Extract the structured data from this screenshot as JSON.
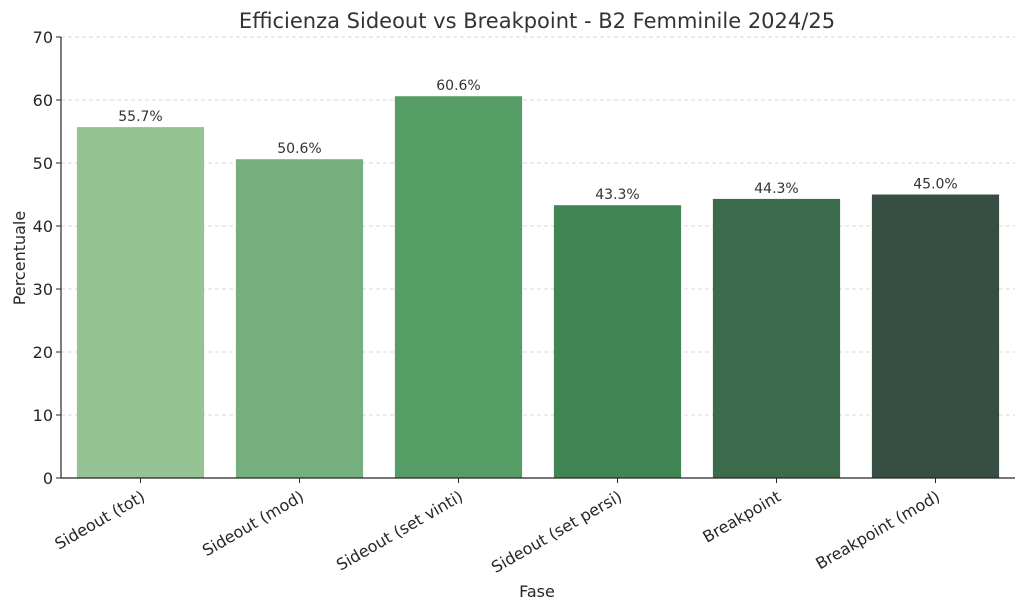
{
  "chart_data": {
    "type": "bar",
    "title": "Efficienza Sideout vs Breakpoint - B2 Femminile 2024/25",
    "xlabel": "Fase",
    "ylabel": "Percentuale",
    "categories": [
      "Sideout (tot)",
      "Sideout (mod)",
      "Sideout (set vinti)",
      "Sideout (set persi)",
      "Breakpoint",
      "Breakpoint (mod)"
    ],
    "values": [
      55.7,
      50.6,
      60.6,
      43.3,
      44.3,
      45.0
    ],
    "data_labels": [
      "55.7%",
      "50.6%",
      "60.6%",
      "43.3%",
      "44.3%",
      "45.0%"
    ],
    "colors": [
      "#95c394",
      "#74af7d",
      "#559c65",
      "#418554",
      "#3b6b4b",
      "#374f42"
    ],
    "ylim": [
      0,
      70
    ],
    "yticks": [
      "0",
      "10",
      "20",
      "30",
      "40",
      "50",
      "60",
      "70"
    ],
    "grid": "horizontal dashed",
    "legend": "none"
  }
}
